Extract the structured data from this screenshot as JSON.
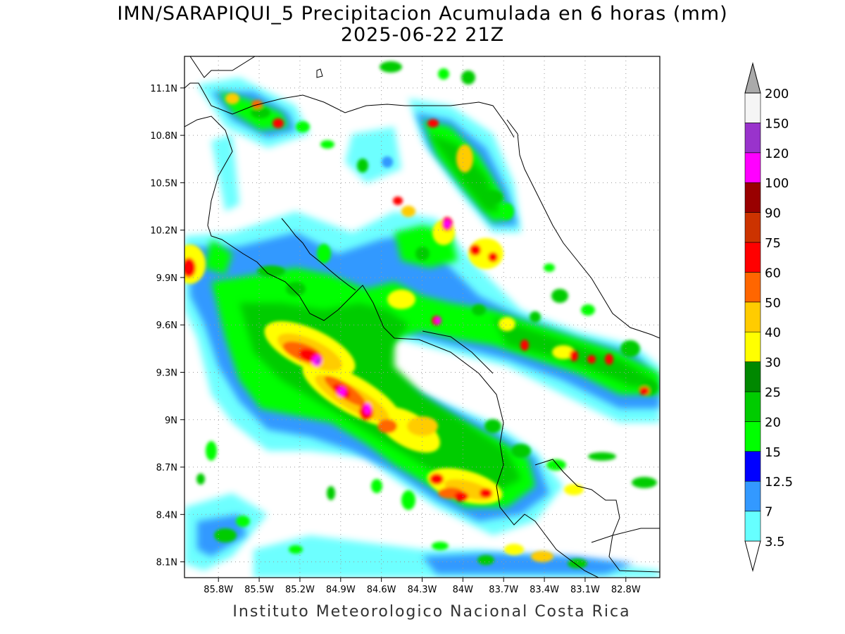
{
  "title": "IMN/SARAPIQUI_5 Precipitacion Acumulada en 6 horas (mm)",
  "subtitle": "2025-06-22 21Z",
  "footer": "Instituto Meteorologico Nacional Costa Rica",
  "map": {
    "lon_range": [
      -86.05,
      -82.55
    ],
    "lat_range": [
      8.0,
      11.3
    ],
    "lon_ticks": [
      "85.8W",
      "85.5W",
      "85.2W",
      "84.9W",
      "84.6W",
      "84.3W",
      "84W",
      "83.7W",
      "83.4W",
      "83.1W",
      "82.8W"
    ],
    "lat_ticks": [
      "11.1N",
      "10.8N",
      "10.5N",
      "10.2N",
      "9.9N",
      "9.6N",
      "9.3N",
      "9N",
      "8.7N",
      "8.4N",
      "8.1N"
    ],
    "grid": true
  },
  "colorbar": {
    "labels": [
      "3.5",
      "7",
      "12.5",
      "15",
      "20",
      "25",
      "30",
      "40",
      "50",
      "60",
      "75",
      "90",
      "100",
      "120",
      "150",
      "200"
    ],
    "colors": [
      "#ffffff",
      "#66ffff",
      "#3399ff",
      "#0000ff",
      "#00ff00",
      "#00cc00",
      "#008800",
      "#ffff00",
      "#ffcc00",
      "#ff6600",
      "#ff0000",
      "#cc3300",
      "#990000",
      "#ff00ff",
      "#9933cc",
      "#f5f5f5",
      "#aaaaaa"
    ]
  }
}
